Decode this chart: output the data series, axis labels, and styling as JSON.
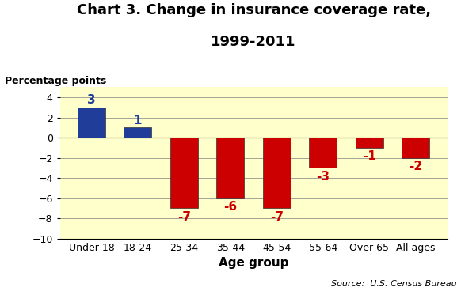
{
  "title_line1": "Chart 3. Change in insurance coverage rate,",
  "title_line2": "1999-2011",
  "ylabel": "Percentage points",
  "xlabel": "Age group",
  "source": "Source:  U.S. Census Bureau",
  "categories": [
    "Under 18",
    "18-24",
    "25-34",
    "35-44",
    "45-54",
    "55-64",
    "Over 65",
    "All ages"
  ],
  "values": [
    3,
    1,
    -7,
    -6,
    -7,
    -3,
    -1,
    -2
  ],
  "bar_colors": [
    "#1F3D99",
    "#1F3D99",
    "#CC0000",
    "#CC0000",
    "#CC0000",
    "#CC0000",
    "#CC0000",
    "#CC0000"
  ],
  "label_colors": [
    "#1F3D99",
    "#1F3D99",
    "#CC0000",
    "#CC0000",
    "#CC0000",
    "#CC0000",
    "#CC0000",
    "#CC0000"
  ],
  "ylim": [
    -10,
    5
  ],
  "yticks": [
    -10,
    -8,
    -6,
    -4,
    -2,
    0,
    2,
    4
  ],
  "background_color": "#FFFFCC",
  "figure_background": "#FFFFFF",
  "title_fontsize": 13,
  "ylabel_fontsize": 9,
  "xlabel_fontsize": 11,
  "tick_fontsize": 9,
  "value_label_fontsize": 11,
  "source_fontsize": 8
}
